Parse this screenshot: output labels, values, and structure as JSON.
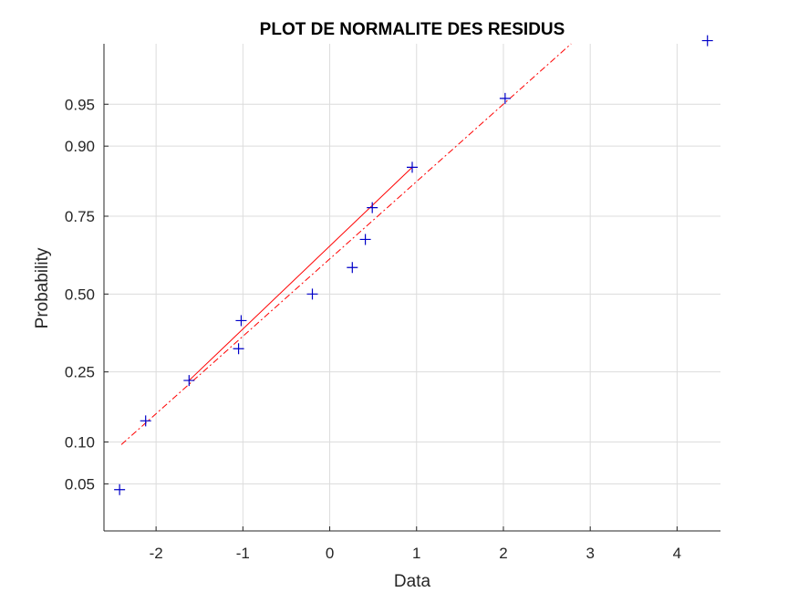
{
  "chart_data": {
    "type": "scatter",
    "title": "PLOT DE NORMALITE DES RESIDUS",
    "xlabel": "Data",
    "ylabel": "Probability",
    "xlim": [
      -2.6,
      4.5
    ],
    "x_ticks": [
      -2,
      -1,
      0,
      1,
      2,
      3,
      4
    ],
    "x_tick_labels": [
      "-2",
      "-1",
      "0",
      "1",
      "2",
      "3",
      "4"
    ],
    "y_scale": "normal-probability",
    "ylim_probability": [
      0.02,
      0.985
    ],
    "y_ticks": [
      0.05,
      0.1,
      0.25,
      0.5,
      0.75,
      0.9,
      0.95
    ],
    "y_tick_labels": [
      "0.05",
      "0.10",
      "0.25",
      "0.50",
      "0.75",
      "0.90",
      "0.95"
    ],
    "grid": true,
    "marker": "+",
    "points": [
      {
        "x": -2.42,
        "p": 0.045
      },
      {
        "x": -2.12,
        "p": 0.136
      },
      {
        "x": -1.62,
        "p": 0.227
      },
      {
        "x": -1.05,
        "p": 0.318
      },
      {
        "x": -1.02,
        "p": 0.409
      },
      {
        "x": -0.2,
        "p": 0.5
      },
      {
        "x": 0.26,
        "p": 0.591
      },
      {
        "x": 0.41,
        "p": 0.682
      },
      {
        "x": 0.49,
        "p": 0.773
      },
      {
        "x": 0.95,
        "p": 0.864
      },
      {
        "x": 2.02,
        "p": 0.955
      },
      {
        "x": 4.35,
        "p": 0.986
      }
    ],
    "reference_line": {
      "color": "#ff0000",
      "solid_from": {
        "x": -1.62,
        "p": 0.227
      },
      "solid_to": {
        "x": 0.95,
        "p": 0.864
      },
      "extended_from": {
        "x": -2.4,
        "p": 0.096
      },
      "extended_to": {
        "x": 2.78,
        "p": 0.985
      }
    },
    "colors": {
      "points": "#0000c8",
      "line": "#ff0000"
    }
  }
}
